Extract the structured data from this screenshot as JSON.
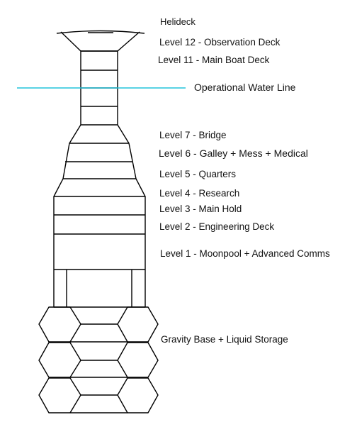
{
  "labels": {
    "helideck": "Helideck",
    "level12": "Level 12 - Observation Deck",
    "level11": "Level 11 - Main Boat Deck",
    "water_line": "Operational Water Line",
    "level7": "Level 7 - Bridge",
    "level6": "Level 6 - Galley + Mess + Medical",
    "level5": "Level 5 - Quarters",
    "level4": "Level 4 - Research",
    "level3": "Level 3 - Main Hold",
    "level2": "Level 2 - Engineering Deck",
    "level1": "Level 1 - Moonpool  + Advanced Comms",
    "gravity_base": "Gravity Base + Liquid Storage"
  },
  "colors": {
    "outline": "#000000",
    "water_line": "#22c4dc",
    "text": "#111111"
  }
}
